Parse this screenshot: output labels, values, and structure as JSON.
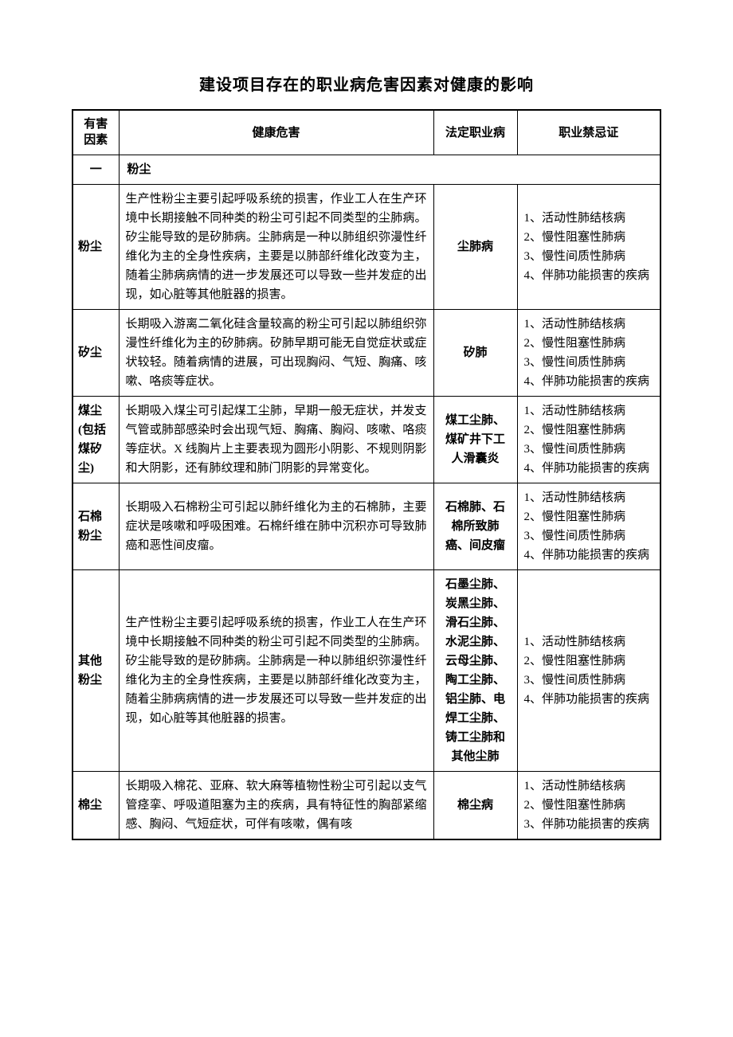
{
  "title": "建设项目存在的职业病危害因素对健康的影响",
  "columns": {
    "factor_l1": "有害",
    "factor_l2": "因素",
    "hazard": "健康危害",
    "disease": "法定职业病",
    "contra": "职业禁忌证"
  },
  "section": {
    "num": "一",
    "label": "粉尘"
  },
  "rows": [
    {
      "factor": "粉尘",
      "hazard": "生产性粉尘主要引起呼吸系统的损害，作业工人在生产环境中长期接触不同种类的粉尘可引起不同类型的尘肺病。矽尘能导致的是矽肺病。尘肺病是一种以肺组织弥漫性纤维化为主的全身性疾病，主要是以肺部纤维化改变为主，随着尘肺病病情的进一步发展还可以导致一些并发症的出现，如心脏等其他脏器的损害。",
      "disease": "尘肺病",
      "contra": [
        "1、活动性肺结核病",
        "2、慢性阻塞性肺病",
        "3、慢性间质性肺病",
        "4、伴肺功能损害的疾病"
      ]
    },
    {
      "factor": "矽尘",
      "hazard": "长期吸入游离二氧化硅含量较高的粉尘可引起以肺组织弥漫性纤维化为主的矽肺病。矽肺早期可能无自觉症状或症状较轻。随着病情的进展，可出现胸闷、气短、胸痛、咳嗽、咯痰等症状。",
      "disease": "矽肺",
      "contra": [
        "1、活动性肺结核病",
        "2、慢性阻塞性肺病",
        "3、慢性间质性肺病",
        "4、伴肺功能损害的疾病"
      ]
    },
    {
      "factor": "煤尘(包括煤矽尘)",
      "hazard": "长期吸入煤尘可引起煤工尘肺，早期一般无症状，并发支气管或肺部感染时会出现气短、胸痛、胸闷、咳嗽、咯痰等症状。X 线胸片上主要表现为圆形小阴影、不规则阴影和大阴影，还有肺纹理和肺门阴影的异常变化。",
      "disease": "煤工尘肺、煤矿井下工人滑囊炎",
      "contra": [
        "1、活动性肺结核病",
        "2、慢性阻塞性肺病",
        "3、慢性间质性肺病",
        "4、伴肺功能损害的疾病"
      ]
    },
    {
      "factor": "石棉粉尘",
      "hazard": "长期吸入石棉粉尘可引起以肺纤维化为主的石棉肺，主要症状是咳嗽和呼吸困难。石棉纤维在肺中沉积亦可导致肺癌和恶性间皮瘤。",
      "disease": "石棉肺、石棉所致肺癌、间皮瘤",
      "contra": [
        "1、活动性肺结核病",
        "2、慢性阻塞性肺病",
        "3、慢性间质性肺病",
        "4、伴肺功能损害的疾病"
      ]
    },
    {
      "factor": "其他粉尘",
      "hazard": "生产性粉尘主要引起呼吸系统的损害，作业工人在生产环境中长期接触不同种类的粉尘可引起不同类型的尘肺病。矽尘能导致的是矽肺病。尘肺病是一种以肺组织弥漫性纤维化为主的全身性疾病，主要是以肺部纤维化改变为主，随着尘肺病病情的进一步发展还可以导致一些并发症的出现，如心脏等其他脏器的损害。",
      "disease": "石墨尘肺、炭黑尘肺、滑石尘肺、水泥尘肺、云母尘肺、陶工尘肺、铝尘肺、电焊工尘肺、铸工尘肺和其他尘肺",
      "contra": [
        "1、活动性肺结核病",
        "2、慢性阻塞性肺病",
        "3、慢性间质性肺病",
        "4、伴肺功能损害的疾病"
      ]
    },
    {
      "factor": "棉尘",
      "hazard": "长期吸入棉花、亚麻、软大麻等植物性粉尘可引起以支气管痉挛、呼吸道阻塞为主的疾病，具有特征性的胸部紧缩感、胸闷、气短症状，可伴有咳嗽，偶有咳",
      "disease": "棉尘病",
      "contra": [
        "1、活动性肺结核病",
        "2、慢性阻塞性肺病",
        "3、伴肺功能损害的疾病"
      ]
    }
  ]
}
